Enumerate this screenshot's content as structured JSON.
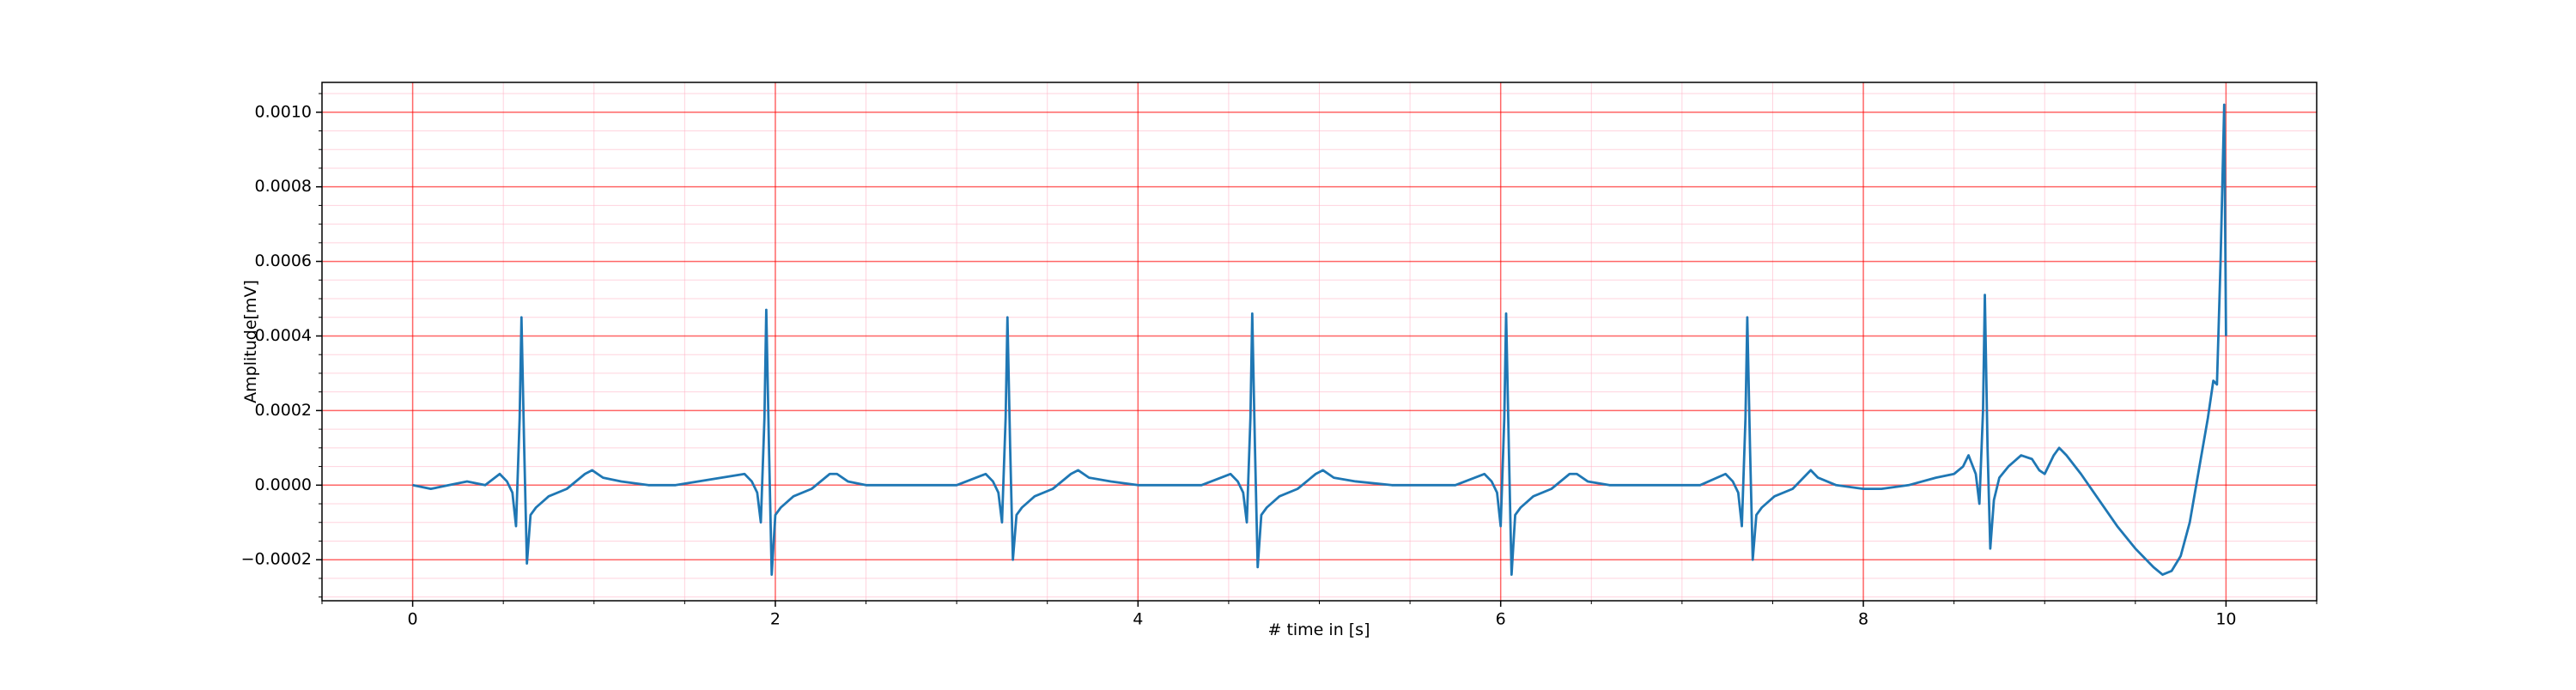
{
  "chart_data": {
    "type": "line",
    "xlabel": "# time in [s]",
    "ylabel": "Amplitude[mV]",
    "xlim": [
      -0.5,
      10.5
    ],
    "ylim": [
      -0.00031,
      0.00108
    ],
    "xticks": [
      0,
      2,
      4,
      6,
      8,
      10
    ],
    "yticks": [
      {
        "value": -0.0002,
        "label": "−0.0002"
      },
      {
        "value": 0,
        "label": "0.0000"
      },
      {
        "value": 0.0002,
        "label": "0.0002"
      },
      {
        "value": 0.0004,
        "label": "0.0004"
      },
      {
        "value": 0.0006,
        "label": "0.0006"
      },
      {
        "value": 0.0008,
        "label": "0.0008"
      },
      {
        "value": 0.001,
        "label": "0.0010"
      }
    ],
    "xminorticks": [
      -0.5,
      0.5,
      1,
      1.5,
      2.5,
      3,
      3.5,
      4.5,
      5,
      5.5,
      6.5,
      7,
      7.5,
      8.5,
      9,
      9.5,
      10.5
    ],
    "yminorticks": [
      -0.0003,
      -0.00025,
      -0.00015,
      -0.0001,
      -5e-05,
      5e-05,
      0.0001,
      0.00015,
      0.00025,
      0.0003,
      0.00035,
      0.00045,
      0.0005,
      0.00055,
      0.00065,
      0.0007,
      0.00075,
      0.00085,
      0.0009,
      0.00095,
      0.00105
    ],
    "grid": true,
    "grid_color": "#ff0000",
    "minor_grid_color": "#ffb6c8",
    "series": [
      {
        "color": "#1f77b4",
        "x": [
          0,
          0.1,
          0.2,
          0.3,
          0.4,
          0.48,
          0.52,
          0.55,
          0.57,
          0.59,
          0.6,
          0.615,
          0.63,
          0.65,
          0.68,
          0.75,
          0.85,
          0.95,
          0.99,
          1.05,
          1.15,
          1.3,
          1.45,
          1.83,
          1.87,
          1.9,
          1.92,
          1.94,
          1.95,
          1.965,
          1.98,
          2.0,
          2.03,
          2.1,
          2.2,
          2.3,
          2.34,
          2.4,
          2.5,
          2.65,
          2.8,
          3.0,
          3.16,
          3.2,
          3.23,
          3.25,
          3.27,
          3.28,
          3.295,
          3.31,
          3.33,
          3.36,
          3.43,
          3.53,
          3.63,
          3.67,
          3.73,
          3.85,
          4.0,
          4.2,
          4.35,
          4.51,
          4.55,
          4.58,
          4.6,
          4.62,
          4.63,
          4.645,
          4.66,
          4.68,
          4.71,
          4.78,
          4.88,
          4.98,
          5.02,
          5.08,
          5.2,
          5.4,
          5.6,
          5.75,
          5.91,
          5.95,
          5.98,
          6.0,
          6.02,
          6.03,
          6.045,
          6.06,
          6.08,
          6.11,
          6.18,
          6.28,
          6.38,
          6.42,
          6.48,
          6.6,
          6.8,
          7.0,
          7.1,
          7.24,
          7.28,
          7.31,
          7.33,
          7.35,
          7.36,
          7.375,
          7.39,
          7.41,
          7.44,
          7.51,
          7.61,
          7.71,
          7.75,
          7.85,
          8.0,
          8.1,
          8.25,
          8.4,
          8.5,
          8.55,
          8.58,
          8.62,
          8.64,
          8.66,
          8.67,
          8.685,
          8.7,
          8.72,
          8.75,
          8.8,
          8.87,
          8.93,
          8.97,
          9.0,
          9.05,
          9.08,
          9.12,
          9.2,
          9.3,
          9.4,
          9.5,
          9.6,
          9.65,
          9.7,
          9.75,
          9.8,
          9.85,
          9.9,
          9.93,
          9.95,
          9.97,
          9.99,
          10.0
        ],
        "values": [
          0,
          -1e-05,
          0,
          1e-05,
          0,
          3e-05,
          1e-05,
          -2e-05,
          -0.00011,
          0.00018,
          0.00045,
          0.0001,
          -0.00021,
          -8e-05,
          -6e-05,
          -3e-05,
          -1e-05,
          3e-05,
          4e-05,
          2e-05,
          1e-05,
          0,
          0,
          3e-05,
          1e-05,
          -2e-05,
          -0.0001,
          0.00018,
          0.00047,
          0.0001,
          -0.00024,
          -8e-05,
          -6e-05,
          -3e-05,
          -1e-05,
          3e-05,
          3e-05,
          1e-05,
          0,
          0,
          0,
          0,
          3e-05,
          1e-05,
          -2e-05,
          -0.0001,
          0.00018,
          0.00045,
          0.0001,
          -0.0002,
          -8e-05,
          -6e-05,
          -3e-05,
          -1e-05,
          3e-05,
          4e-05,
          2e-05,
          1e-05,
          0,
          0,
          0,
          3e-05,
          1e-05,
          -2e-05,
          -0.0001,
          0.00018,
          0.00046,
          0.0001,
          -0.00022,
          -8e-05,
          -6e-05,
          -3e-05,
          -1e-05,
          3e-05,
          4e-05,
          2e-05,
          1e-05,
          0,
          0,
          0,
          3e-05,
          1e-05,
          -2e-05,
          -0.00011,
          0.00018,
          0.00046,
          0.0001,
          -0.00024,
          -8e-05,
          -6e-05,
          -3e-05,
          -1e-05,
          3e-05,
          3e-05,
          1e-05,
          0,
          0,
          0,
          0,
          3e-05,
          1e-05,
          -2e-05,
          -0.00011,
          0.00018,
          0.00045,
          0.0001,
          -0.0002,
          -8e-05,
          -6e-05,
          -3e-05,
          -1e-05,
          4e-05,
          2e-05,
          0,
          -1e-05,
          -1e-05,
          0,
          2e-05,
          3e-05,
          5e-05,
          8e-05,
          3e-05,
          -5e-05,
          0.0002,
          0.00051,
          0.0001,
          -0.00017,
          -4e-05,
          2e-05,
          5e-05,
          8e-05,
          7e-05,
          4e-05,
          3e-05,
          8e-05,
          0.0001,
          8e-05,
          3e-05,
          -4e-05,
          -0.00011,
          -0.00017,
          -0.00022,
          -0.00024,
          -0.00023,
          -0.00019,
          -0.0001,
          4e-05,
          0.00018,
          0.00028,
          0.00027,
          0.0006,
          0.00102,
          0.0004
        ]
      }
    ]
  }
}
